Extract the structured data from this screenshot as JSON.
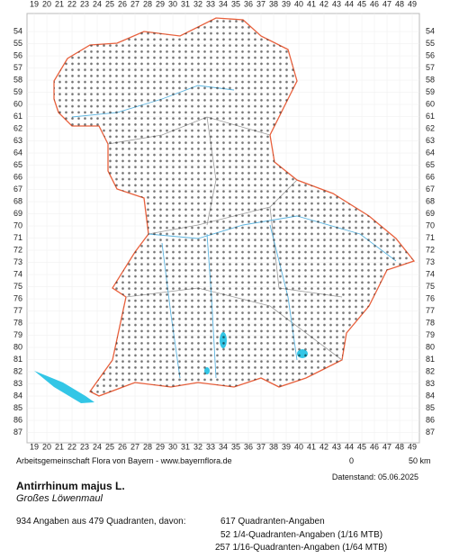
{
  "grid": {
    "columns": [
      19,
      20,
      21,
      22,
      23,
      24,
      25,
      26,
      27,
      28,
      29,
      30,
      31,
      32,
      33,
      34,
      35,
      36,
      37,
      38,
      39,
      40,
      41,
      42,
      43,
      44,
      45,
      46,
      47,
      48,
      49
    ],
    "rows": [
      54,
      55,
      56,
      57,
      58,
      59,
      60,
      61,
      62,
      63,
      64,
      65,
      66,
      67,
      68,
      69,
      70,
      71,
      72,
      73,
      74,
      75,
      76,
      77,
      78,
      79,
      80,
      81,
      82,
      83,
      84,
      85,
      86,
      87
    ]
  },
  "footer": {
    "credit": "Arbeitsgemeinschaft Flora von Bayern - www.bayernflora.de",
    "scale_start": "0",
    "scale_end": "50 km",
    "date": "Datenstand: 05.06.2025"
  },
  "species": {
    "name": "Antirrhinum majus L.",
    "common_name": "Großes Löwenmaul"
  },
  "stats": {
    "summary": "934 Angaben aus 479 Quadranten, davon:",
    "lines": [
      "617 Quadranten-Angaben",
      "52 1/4-Quadranten-Angaben (1/16 MTB)",
      "257 1/16-Quadranten-Angaben (1/64 MTB)"
    ]
  }
}
